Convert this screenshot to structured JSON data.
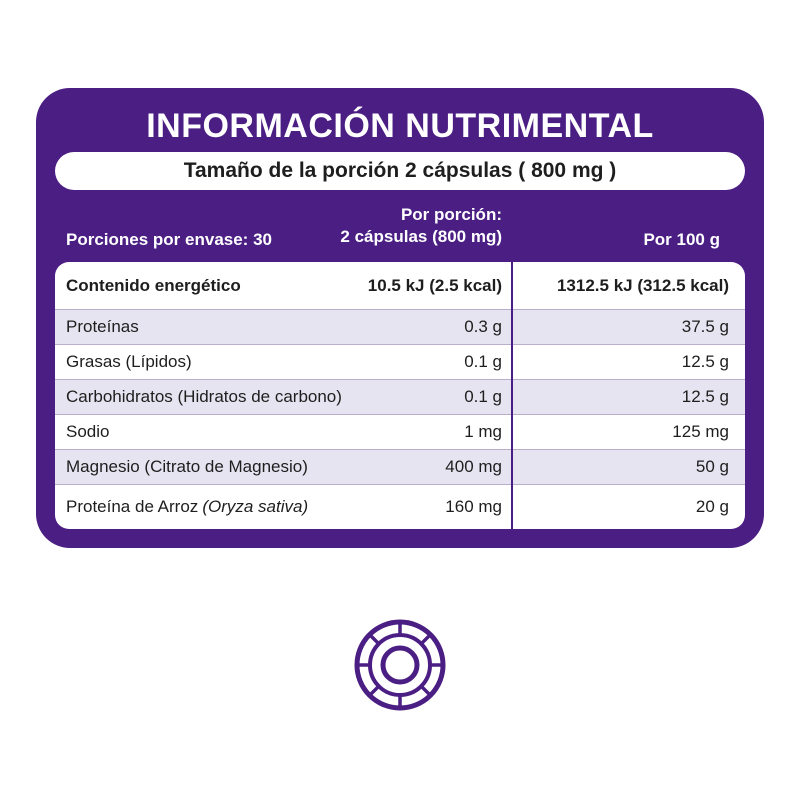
{
  "label": {
    "title": "INFORMACIÓN NUTRIMENTAL",
    "serving_size": "Tamaño de la porción 2 cápsulas ( 800 mg )",
    "header": {
      "servings_per_container": "Porciones por envase: 30",
      "per_portion_line1": "Por porción:",
      "per_portion_line2": "2 cápsulas (800 mg)",
      "per_100g": "Por 100 g"
    },
    "rows": [
      {
        "name": "Contenido energético",
        "name_italic": "",
        "per_portion": "10.5 kJ (2.5 kcal)",
        "per_100g": "1312.5 kJ (312.5 kcal)"
      },
      {
        "name": "Proteínas",
        "name_italic": "",
        "per_portion": "0.3 g",
        "per_100g": "37.5 g"
      },
      {
        "name": "Grasas (Lípidos)",
        "name_italic": "",
        "per_portion": "0.1 g",
        "per_100g": "12.5 g"
      },
      {
        "name": "Carbohidratos (Hidratos de carbono)",
        "name_italic": "",
        "per_portion": "0.1 g",
        "per_100g": "12.5 g"
      },
      {
        "name": "Sodio",
        "name_italic": "",
        "per_portion": "1 mg",
        "per_100g": "125 mg"
      },
      {
        "name": "Magnesio (Citrato de Magnesio)",
        "name_italic": "",
        "per_portion": "400 mg",
        "per_100g": "50 g"
      },
      {
        "name": "Proteína de Arroz",
        "name_italic": "(Oryza sativa)",
        "per_portion": "160 mg",
        "per_100g": "20 g"
      }
    ]
  },
  "colors": {
    "brand_purple": "#4b1e84",
    "row_shade": "#e6e4f0"
  },
  "icons": {
    "brand_logo": "concentric-ring-logo-icon"
  }
}
